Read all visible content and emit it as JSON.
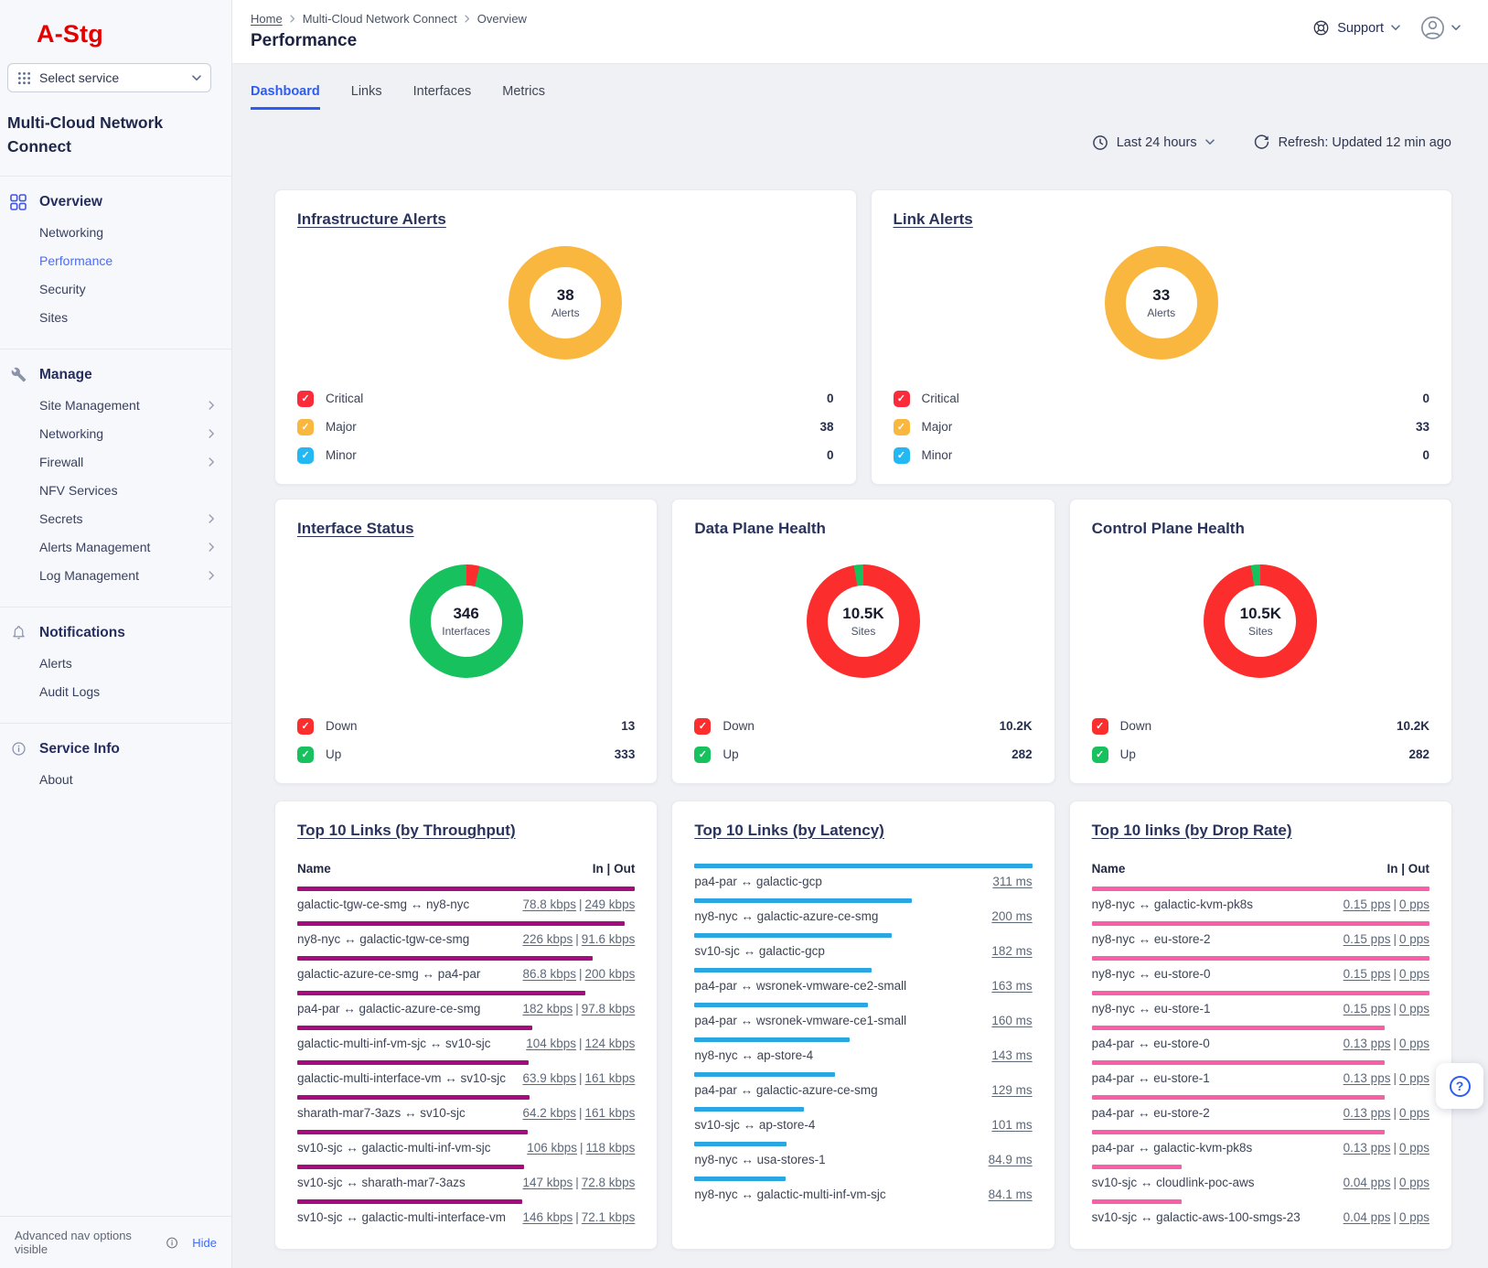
{
  "sidebar": {
    "logo": "A-Stg",
    "select_service": "Select service",
    "product_title": "Multi-Cloud Network Connect",
    "sections": [
      {
        "label": "Overview",
        "items": [
          {
            "label": "Networking"
          },
          {
            "label": "Performance",
            "active": true
          },
          {
            "label": "Security"
          },
          {
            "label": "Sites"
          }
        ]
      },
      {
        "label": "Manage",
        "items": [
          {
            "label": "Site Management",
            "chev": true
          },
          {
            "label": "Networking",
            "chev": true
          },
          {
            "label": "Firewall",
            "chev": true
          },
          {
            "label": "NFV Services"
          },
          {
            "label": "Secrets",
            "chev": true
          },
          {
            "label": "Alerts Management",
            "chev": true
          },
          {
            "label": "Log Management",
            "chev": true
          }
        ]
      },
      {
        "label": "Notifications",
        "items": [
          {
            "label": "Alerts"
          },
          {
            "label": "Audit Logs"
          }
        ]
      },
      {
        "label": "Service Info",
        "items": [
          {
            "label": "About"
          }
        ]
      }
    ],
    "footer": {
      "text": "Advanced nav options visible",
      "action": "Hide"
    }
  },
  "header": {
    "breadcrumb": [
      "Home",
      "Multi-Cloud Network Connect",
      "Overview"
    ],
    "title": "Performance",
    "support": "Support"
  },
  "tabs": [
    {
      "label": "Dashboard",
      "active": true
    },
    {
      "label": "Links"
    },
    {
      "label": "Interfaces"
    },
    {
      "label": "Metrics"
    }
  ],
  "controls": {
    "time_range": "Last 24 hours",
    "refresh": "Refresh: Updated 12 min ago"
  },
  "misc": {
    "pipe": "|"
  },
  "help_button": "?",
  "chart_data": [
    {
      "type": "pie",
      "title": "Infrastructure Alerts",
      "center_value": "38",
      "center_label": "Alerts",
      "legend_position": "bottom",
      "segments": [
        {
          "label": "Critical",
          "value": 0,
          "display": "0",
          "color": "#fa2c3c"
        },
        {
          "label": "Major",
          "value": 38,
          "display": "38",
          "color": "#f9b73f"
        },
        {
          "label": "Minor",
          "value": 0,
          "display": "0",
          "color": "#23b8f2"
        }
      ]
    },
    {
      "type": "pie",
      "title": "Link Alerts",
      "center_value": "33",
      "center_label": "Alerts",
      "legend_position": "bottom",
      "segments": [
        {
          "label": "Critical",
          "value": 0,
          "display": "0",
          "color": "#fa2c3c"
        },
        {
          "label": "Major",
          "value": 33,
          "display": "33",
          "color": "#f9b73f"
        },
        {
          "label": "Minor",
          "value": 0,
          "display": "0",
          "color": "#23b8f2"
        }
      ]
    },
    {
      "type": "pie",
      "title": "Interface Status",
      "center_value": "346",
      "center_label": "Interfaces",
      "legend_position": "bottom",
      "segments": [
        {
          "label": "Down",
          "value": 13,
          "display": "13",
          "color": "#fb2d2d"
        },
        {
          "label": "Up",
          "value": 333,
          "display": "333",
          "color": "#17c15e"
        }
      ]
    },
    {
      "type": "pie",
      "title": "Data Plane Health",
      "center_value": "10.5K",
      "center_label": "Sites",
      "legend_position": "bottom",
      "segments": [
        {
          "label": "Down",
          "value": 10200,
          "display": "10.2K",
          "color": "#fb2d2d"
        },
        {
          "label": "Up",
          "value": 282,
          "display": "282",
          "color": "#17c15e"
        }
      ]
    },
    {
      "type": "pie",
      "title": "Control Plane Health",
      "center_value": "10.5K",
      "center_label": "Sites",
      "legend_position": "bottom",
      "segments": [
        {
          "label": "Down",
          "value": 10200,
          "display": "10.2K",
          "color": "#fb2d2d"
        },
        {
          "label": "Up",
          "value": 282,
          "display": "282",
          "color": "#17c15e"
        }
      ]
    },
    {
      "type": "table",
      "title": "Top 10 Links (by Throughput)",
      "columns": [
        "Name",
        "In | Out"
      ],
      "bar_color": "#a50d7e",
      "rows": [
        {
          "name": "galactic-tgw-ce-smg ↔ ny8-nyc",
          "in": "78.8 kbps",
          "out": "249 kbps",
          "bar_pct": 100
        },
        {
          "name": "ny8-nyc ↔ galactic-tgw-ce-smg",
          "in": "226 kbps",
          "out": "91.6 kbps",
          "bar_pct": 96.9
        },
        {
          "name": "galactic-azure-ce-smg ↔ pa4-par",
          "in": "86.8 kbps",
          "out": "200 kbps",
          "bar_pct": 87.5
        },
        {
          "name": "pa4-par ↔ galactic-azure-ce-smg",
          "in": "182 kbps",
          "out": "97.8 kbps",
          "bar_pct": 85.4
        },
        {
          "name": "galactic-multi-inf-vm-sjc ↔ sv10-sjc",
          "in": "104 kbps",
          "out": "124 kbps",
          "bar_pct": 69.6
        },
        {
          "name": "galactic-multi-interface-vm ↔ sv10-sjc",
          "in": "63.9 kbps",
          "out": "161 kbps",
          "bar_pct": 68.6
        },
        {
          "name": "sharath-mar7-3azs ↔ sv10-sjc",
          "in": "64.2 kbps",
          "out": "161 kbps",
          "bar_pct": 68.7
        },
        {
          "name": "sv10-sjc ↔ galactic-multi-inf-vm-sjc",
          "in": "106 kbps",
          "out": "118 kbps",
          "bar_pct": 68.3
        },
        {
          "name": "sv10-sjc ↔ sharath-mar7-3azs",
          "in": "147 kbps",
          "out": "72.8 kbps",
          "bar_pct": 67.1
        },
        {
          "name": "sv10-sjc ↔ galactic-multi-interface-vm",
          "in": "146 kbps",
          "out": "72.1 kbps",
          "bar_pct": 66.5
        }
      ]
    },
    {
      "type": "table",
      "title": "Top 10 Links (by Latency)",
      "columns": [],
      "bar_color": "#2aa7e0",
      "rows": [
        {
          "name": "pa4-par ↔ galactic-gcp",
          "value": "311 ms",
          "bar_pct": 100
        },
        {
          "name": "ny8-nyc ↔ galactic-azure-ce-smg",
          "value": "200 ms",
          "bar_pct": 64.3
        },
        {
          "name": "sv10-sjc ↔ galactic-gcp",
          "value": "182 ms",
          "bar_pct": 58.5
        },
        {
          "name": "pa4-par ↔ wsronek-vmware-ce2-small",
          "value": "163 ms",
          "bar_pct": 52.4
        },
        {
          "name": "pa4-par ↔ wsronek-vmware-ce1-small",
          "value": "160 ms",
          "bar_pct": 51.4
        },
        {
          "name": "ny8-nyc ↔ ap-store-4",
          "value": "143 ms",
          "bar_pct": 46
        },
        {
          "name": "pa4-par ↔ galactic-azure-ce-smg",
          "value": "129 ms",
          "bar_pct": 41.5
        },
        {
          "name": "sv10-sjc ↔ ap-store-4",
          "value": "101 ms",
          "bar_pct": 32.5
        },
        {
          "name": "ny8-nyc ↔ usa-stores-1",
          "value": "84.9 ms",
          "bar_pct": 27.3
        },
        {
          "name": "ny8-nyc ↔ galactic-multi-inf-vm-sjc",
          "value": "84.1 ms",
          "bar_pct": 27
        }
      ]
    },
    {
      "type": "table",
      "title": "Top 10 links (by Drop Rate)",
      "columns": [
        "Name",
        "In | Out"
      ],
      "bar_color": "#f75fa7",
      "rows": [
        {
          "name": "ny8-nyc ↔ galactic-kvm-pk8s",
          "in": "0.15 pps",
          "out": "0 pps",
          "bar_pct": 100
        },
        {
          "name": "ny8-nyc ↔ eu-store-2",
          "in": "0.15 pps",
          "out": "0 pps",
          "bar_pct": 100
        },
        {
          "name": "ny8-nyc ↔ eu-store-0",
          "in": "0.15 pps",
          "out": "0 pps",
          "bar_pct": 100
        },
        {
          "name": "ny8-nyc ↔ eu-store-1",
          "in": "0.15 pps",
          "out": "0 pps",
          "bar_pct": 100
        },
        {
          "name": "pa4-par ↔ eu-store-0",
          "in": "0.13 pps",
          "out": "0 pps",
          "bar_pct": 86.7
        },
        {
          "name": "pa4-par ↔ eu-store-1",
          "in": "0.13 pps",
          "out": "0 pps",
          "bar_pct": 86.7
        },
        {
          "name": "pa4-par ↔ eu-store-2",
          "in": "0.13 pps",
          "out": "0 pps",
          "bar_pct": 86.7
        },
        {
          "name": "pa4-par ↔ galactic-kvm-pk8s",
          "in": "0.13 pps",
          "out": "0 pps",
          "bar_pct": 86.7
        },
        {
          "name": "sv10-sjc ↔ cloudlink-poc-aws",
          "in": "0.04 pps",
          "out": "0 pps",
          "bar_pct": 26.7
        },
        {
          "name": "sv10-sjc ↔ galactic-aws-100-smgs-23",
          "in": "0.04 pps",
          "out": "0 pps",
          "bar_pct": 26.7
        }
      ]
    }
  ]
}
